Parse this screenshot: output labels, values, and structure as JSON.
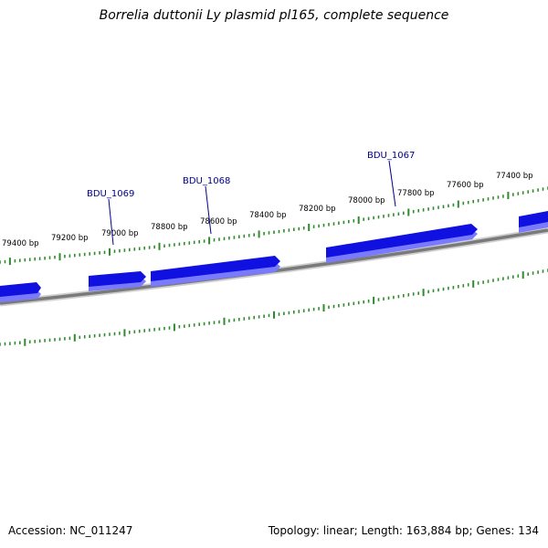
{
  "title": "Borrelia duttonii Ly plasmid pl165, complete sequence",
  "scale_ticks": [
    {
      "label": "79400 bp",
      "bp": 79400
    },
    {
      "label": "79200 bp",
      "bp": 79200
    },
    {
      "label": "79000 bp",
      "bp": 79000
    },
    {
      "label": "78800 bp",
      "bp": 78800
    },
    {
      "label": "78600 bp",
      "bp": 78600
    },
    {
      "label": "78400 bp",
      "bp": 78400
    },
    {
      "label": "78200 bp",
      "bp": 78200
    },
    {
      "label": "78000 bp",
      "bp": 78000
    },
    {
      "label": "77800 bp",
      "bp": 77800
    },
    {
      "label": "77600 bp",
      "bp": 77600
    },
    {
      "label": "77400 bp",
      "bp": 77400
    }
  ],
  "gene_labels": [
    {
      "name": "BDU_1069"
    },
    {
      "name": "BDU_1068"
    },
    {
      "name": "BDU_1067"
    }
  ],
  "colors": {
    "gene": "#1010e0",
    "gene_shadow": "#7a7aff",
    "backbone": "#7a7a7a",
    "tick": "#2e8b2e",
    "label_line": "#00008b"
  },
  "footer": {
    "accession": "Accession: NC_011247",
    "summary": "Topology: linear; Length: 163,884 bp; Genes: 134"
  }
}
